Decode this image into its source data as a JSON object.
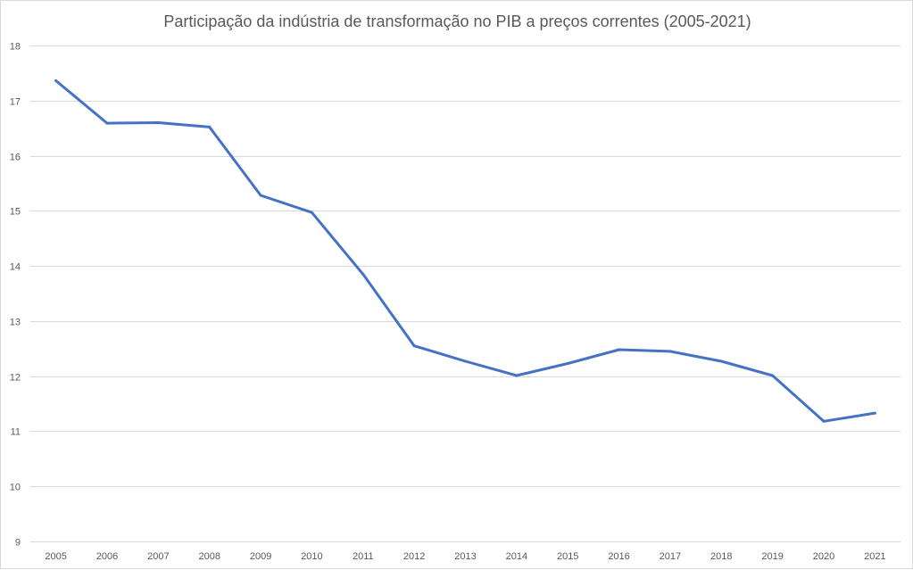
{
  "chart_data": {
    "type": "line",
    "title": "Participação da indústria de transformação no PIB a preços correntes (2005-2021)",
    "xlabel": "",
    "ylabel": "",
    "x": [
      "2005",
      "2006",
      "2007",
      "2008",
      "2009",
      "2010",
      "2011",
      "2012",
      "2013",
      "2014",
      "2015",
      "2016",
      "2017",
      "2018",
      "2019",
      "2020",
      "2021"
    ],
    "series": [
      {
        "values": [
          17.36,
          16.59,
          16.6,
          16.52,
          15.28,
          14.97,
          13.85,
          12.55,
          12.27,
          12.01,
          12.23,
          12.48,
          12.45,
          12.27,
          12.01,
          11.18,
          11.33
        ],
        "color": "#4472c4"
      }
    ],
    "ylim": [
      9,
      18
    ],
    "yticks": [
      "9",
      "10",
      "11",
      "12",
      "13",
      "14",
      "15",
      "16",
      "17",
      "18"
    ],
    "grid": true,
    "legend": "none"
  }
}
